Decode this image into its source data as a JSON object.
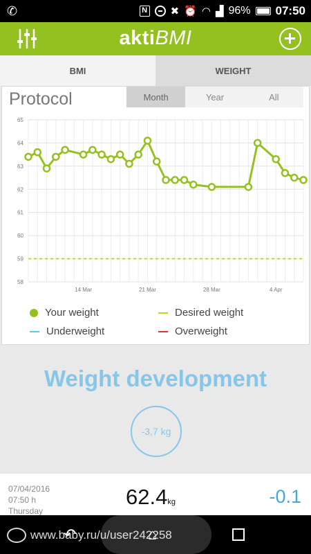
{
  "status_bar": {
    "battery": "96%",
    "time": "07:50",
    "nfc_label": "N",
    "icons": [
      "phone-icon",
      "nfc-icon",
      "dnd-icon",
      "mute-icon",
      "alarm-icon",
      "wifi-icon",
      "signal-icon",
      "battery-icon"
    ]
  },
  "app_bar": {
    "title_bold": "akti",
    "title_italic": "BMI",
    "filter_icon": "sliders-icon",
    "add_icon": "add-circle-icon",
    "accent": "#94c11f"
  },
  "tabs": [
    {
      "label": "BMI"
    },
    {
      "label": "WEIGHT"
    }
  ],
  "protocol": {
    "title": "Protocol",
    "periods": [
      "Month",
      "Year",
      "All"
    ],
    "selected_period": "Month"
  },
  "chart_data": {
    "type": "line",
    "ylim": [
      58,
      65
    ],
    "yticks": [
      "65",
      "64",
      "63",
      "62",
      "61",
      "60",
      "59",
      "58"
    ],
    "xticks": [
      "14 Mar",
      "21 Mar",
      "28 Mar",
      "4 Apr"
    ],
    "xlim": [
      "2016-03-08",
      "2016-04-07"
    ],
    "grid": true,
    "series": [
      {
        "name": "Your weight",
        "color": "#94c11f",
        "points": [
          [
            "2016-03-08",
            63.4
          ],
          [
            "2016-03-09",
            63.6
          ],
          [
            "2016-03-10",
            62.9
          ],
          [
            "2016-03-11",
            63.4
          ],
          [
            "2016-03-12",
            63.7
          ],
          [
            "2016-03-14",
            63.5
          ],
          [
            "2016-03-15",
            63.7
          ],
          [
            "2016-03-16",
            63.5
          ],
          [
            "2016-03-17",
            63.3
          ],
          [
            "2016-03-18",
            63.5
          ],
          [
            "2016-03-19",
            63.1
          ],
          [
            "2016-03-20",
            63.5
          ],
          [
            "2016-03-21",
            64.1
          ],
          [
            "2016-03-22",
            63.2
          ],
          [
            "2016-03-23",
            62.4
          ],
          [
            "2016-03-24",
            62.4
          ],
          [
            "2016-03-25",
            62.4
          ],
          [
            "2016-03-26",
            62.2
          ],
          [
            "2016-03-28",
            62.1
          ],
          [
            "2016-04-01",
            62.1
          ],
          [
            "2016-04-02",
            64.0
          ],
          [
            "2016-04-04",
            63.3
          ],
          [
            "2016-04-05",
            62.7
          ],
          [
            "2016-04-06",
            62.5
          ],
          [
            "2016-04-07",
            62.4
          ]
        ]
      },
      {
        "name": "Desired weight",
        "color": "#c8d62a",
        "value": 59
      }
    ],
    "legend": [
      {
        "label": "Your weight",
        "marker": "dot",
        "color": "#94c11f"
      },
      {
        "label": "Desired weight",
        "marker": "line",
        "color": "#c8d62a"
      },
      {
        "label": "Underweight",
        "marker": "line",
        "color": "#5bc8e8"
      },
      {
        "label": "Overweight",
        "marker": "line",
        "color": "#e03030"
      }
    ],
    "legend_placement": "bottom"
  },
  "development": {
    "title": "Weight development",
    "change": "-3,7 kg",
    "color": "#86c6e8"
  },
  "entry": {
    "date": "07/04/2016",
    "time": "07:50 h",
    "day": "Thursday",
    "weight": "62.4",
    "unit": "kg",
    "diff": "-0.1"
  },
  "nav": {
    "icons": [
      "back-icon",
      "home-icon",
      "recent-apps-icon"
    ]
  },
  "watermark": {
    "text": "www.baby.ru/u/user242258"
  }
}
